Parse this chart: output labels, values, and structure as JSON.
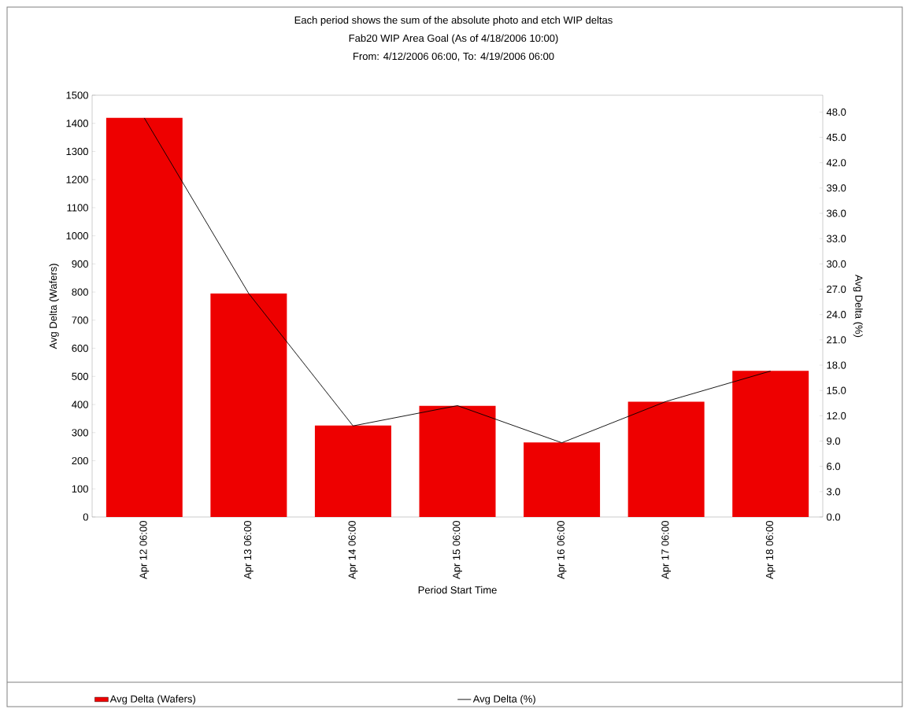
{
  "chart_data": {
    "type": "bar",
    "title": "Each period shows the sum of the absolute photo and etch WIP deltas",
    "subtitle": "Fab20 WIP Area Goal  (As of 4/18/2006 10:00)",
    "annotations": [
      "From: 4/12/2006 06:00, To: 4/19/2006 06:00"
    ],
    "xlabel": "Period Start Time",
    "ylabel": "Avg Delta (Wafers)",
    "y2label": "Avg Delta (%)",
    "categories": [
      "Apr 12 06:00",
      "Apr 13 06:00",
      "Apr 14 06:00",
      "Apr 15 06:00",
      "Apr 16 06:00",
      "Apr 17 06:00",
      "Apr 18 06:00"
    ],
    "series": [
      {
        "name": "Avg Delta (Wafers)",
        "color": "#ee0000",
        "values": [
          1420,
          795,
          325,
          395,
          265,
          410,
          520
        ]
      },
      {
        "name": "Avg Delta (%)",
        "type": "line",
        "axis": "y2",
        "color": "#000000",
        "values": [
          47.3,
          26.5,
          10.8,
          13.2,
          8.8,
          13.7,
          17.3
        ]
      }
    ],
    "ylim": [
      0,
      1500
    ],
    "yticks": [
      0,
      100,
      200,
      300,
      400,
      500,
      600,
      700,
      800,
      900,
      1000,
      1100,
      1200,
      1300,
      1400,
      1500
    ],
    "y2lim": [
      0,
      50
    ],
    "y2ticks": [
      {
        "value": 0,
        "label": "0.0"
      },
      {
        "value": 3,
        "label": "3.0"
      },
      {
        "value": 6,
        "label": "6.0"
      },
      {
        "value": 9,
        "label": "9.0"
      },
      {
        "value": 12,
        "label": "12.0"
      },
      {
        "value": 15,
        "label": "15.0"
      },
      {
        "value": 18,
        "label": "18.0"
      },
      {
        "value": 21,
        "label": "21.0"
      },
      {
        "value": 24,
        "label": "24.0"
      },
      {
        "value": 27,
        "label": "27.0"
      },
      {
        "value": 30,
        "label": "30.0"
      },
      {
        "value": 33,
        "label": "33.0"
      },
      {
        "value": 36,
        "label": "36.0"
      },
      {
        "value": 39,
        "label": "39.0"
      },
      {
        "value": 42,
        "label": "42.0"
      },
      {
        "value": 45,
        "label": "45.0"
      },
      {
        "value": 48,
        "label": "48.0"
      }
    ],
    "legend": "bottom"
  }
}
